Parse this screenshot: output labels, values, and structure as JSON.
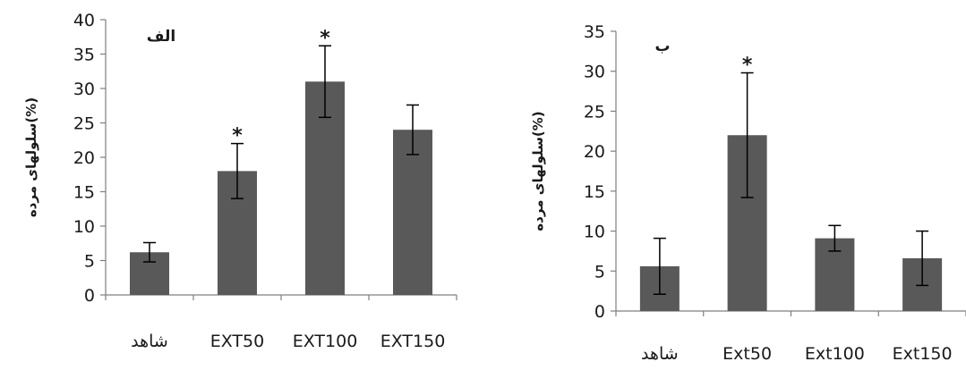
{
  "chart_data": [
    {
      "type": "bar",
      "panel_label": "الف",
      "ylabel": "سلولهای مرده(%)",
      "categories": [
        "شاهد",
        "EXT50",
        "EXT100",
        "EXT150"
      ],
      "values": [
        6.2,
        18,
        31,
        24
      ],
      "errors": [
        1.4,
        4,
        5.2,
        3.6
      ],
      "significant": [
        false,
        true,
        true,
        false
      ],
      "significance_marker": "*",
      "ylim": [
        0,
        40
      ],
      "ytick_step": 5,
      "bar_color": "#595959",
      "grid": false
    },
    {
      "type": "bar",
      "panel_label": "ب",
      "ylabel": "سلولهای مرده(%)",
      "categories": [
        "شاهد",
        "Ext50",
        "Ext100",
        "Ext150"
      ],
      "values": [
        5.6,
        22,
        9.1,
        6.6
      ],
      "errors": [
        3.5,
        7.8,
        1.6,
        3.4
      ],
      "significant": [
        false,
        true,
        false,
        false
      ],
      "significance_marker": "*",
      "ylim": [
        0,
        35
      ],
      "ytick_step": 5,
      "bar_color": "#595959",
      "grid": false
    }
  ]
}
